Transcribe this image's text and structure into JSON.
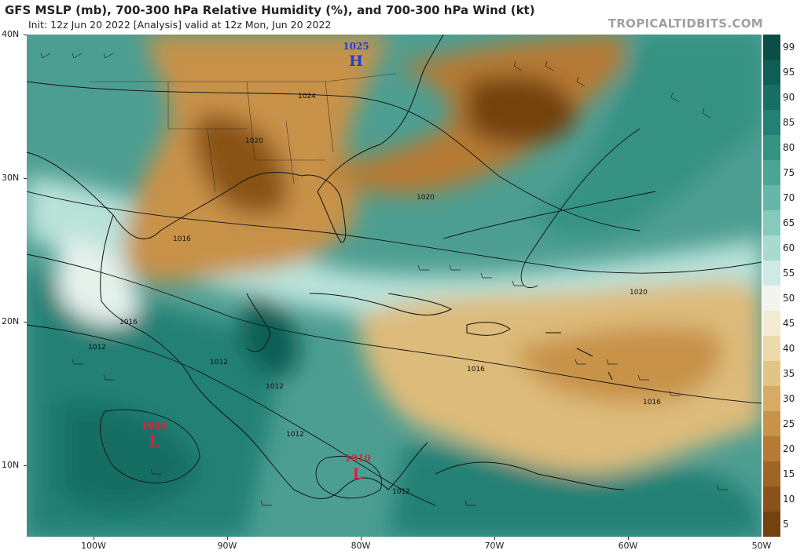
{
  "header": {
    "title": "GFS MSLP (mb), 700-300 hPa Relative Humidity (%), and 700-300 hPa Wind (kt)",
    "subtitle": "Init: 12z Jun 20 2022   [Analysis]   valid at 12z Mon, Jun 20 2022",
    "credit": "TROPICALTIDBITS.COM"
  },
  "axes": {
    "lat_labels": [
      "40N",
      "30N",
      "20N",
      "10N"
    ],
    "lon_labels": [
      "100W",
      "90W",
      "80W",
      "70W",
      "60W",
      "50W"
    ]
  },
  "colorbar": {
    "labels": [
      "99",
      "95",
      "90",
      "85",
      "80",
      "75",
      "70",
      "65",
      "60",
      "55",
      "50",
      "45",
      "40",
      "35",
      "30",
      "25",
      "20",
      "15",
      "10",
      "5"
    ],
    "colors": [
      "#0a4f47",
      "#0f5e55",
      "#176e64",
      "#248074",
      "#349283",
      "#4aa596",
      "#66b7aa",
      "#86c9bd",
      "#a8dad0",
      "#cdeae4",
      "#f2f4ef",
      "#f3ead2",
      "#ecd9ac",
      "#e2c486",
      "#d6ab64",
      "#c8924a",
      "#b67a34",
      "#a06526",
      "#8a5219",
      "#74420f"
    ]
  },
  "pressure_centers": [
    {
      "kind": "H",
      "value": "1025",
      "color": "#1f3fd6"
    },
    {
      "kind": "L",
      "value": "1006",
      "color": "#e0203a"
    },
    {
      "kind": "L",
      "value": "1010",
      "color": "#e0203a"
    }
  ],
  "isobar_labels": [
    "1024",
    "1020",
    "1020",
    "1016",
    "1016",
    "1012",
    "1012",
    "1012",
    "1012",
    "1020",
    "1016",
    "1016",
    "1012"
  ]
}
